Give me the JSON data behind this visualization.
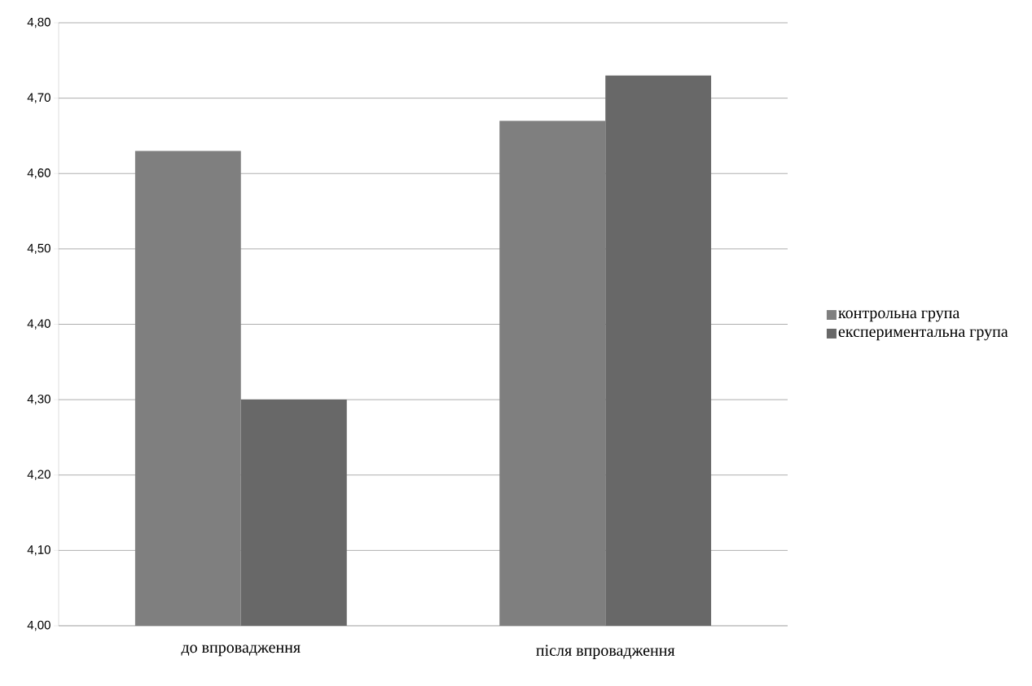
{
  "chart_data": {
    "type": "bar",
    "categories": [
      "до впровадження",
      "після впровадження"
    ],
    "series": [
      {
        "name": "контрольна група",
        "color": "#7f7f7f",
        "values": [
          4.63,
          4.67
        ]
      },
      {
        "name": "експериментальна група",
        "color": "#686868",
        "values": [
          4.3,
          4.73
        ]
      }
    ],
    "ylim": [
      4.0,
      4.8
    ],
    "yticks": [
      {
        "value": 4.0,
        "label": "4,00"
      },
      {
        "value": 4.1,
        "label": "4,10"
      },
      {
        "value": 4.2,
        "label": "4,20"
      },
      {
        "value": 4.3,
        "label": "4,30"
      },
      {
        "value": 4.4,
        "label": "4,40"
      },
      {
        "value": 4.5,
        "label": "4,50"
      },
      {
        "value": 4.6,
        "label": "4,60"
      },
      {
        "value": 4.7,
        "label": "4,70"
      },
      {
        "value": 4.8,
        "label": "4,80"
      }
    ],
    "grid": "y",
    "legend": "right"
  }
}
